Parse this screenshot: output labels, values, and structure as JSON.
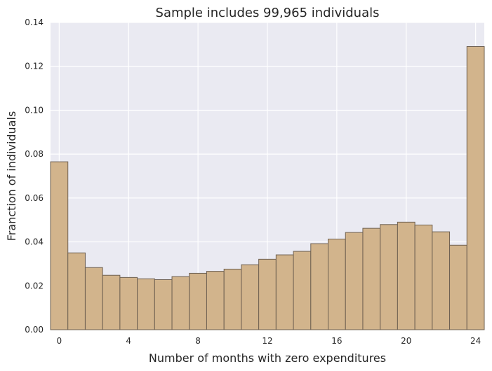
{
  "chart_data": {
    "type": "bar",
    "title": "Sample includes 99,965 individuals",
    "xlabel": "Number of months with zero expenditures",
    "ylabel": "Franction of individuals",
    "categories": [
      0,
      1,
      2,
      3,
      4,
      5,
      6,
      7,
      8,
      9,
      10,
      11,
      12,
      13,
      14,
      15,
      16,
      17,
      18,
      19,
      20,
      21,
      22,
      23,
      24
    ],
    "values": [
      0.0765,
      0.035,
      0.0283,
      0.0248,
      0.0238,
      0.0232,
      0.0228,
      0.0242,
      0.0257,
      0.0266,
      0.0276,
      0.0296,
      0.0321,
      0.0341,
      0.0357,
      0.0392,
      0.0413,
      0.0443,
      0.0462,
      0.0479,
      0.049,
      0.0477,
      0.0446,
      0.0385,
      0.129
    ],
    "xlim": [
      -0.5,
      24.5
    ],
    "ylim": [
      0,
      0.14
    ],
    "xticks": [
      0,
      4,
      8,
      12,
      16,
      20,
      24
    ],
    "xtick_labels": [
      "0",
      "4",
      "8",
      "12",
      "16",
      "20",
      "24"
    ],
    "yticks": [
      0,
      0.02,
      0.04,
      0.06,
      0.08,
      0.1,
      0.12,
      0.14
    ],
    "ytick_labels": [
      "0.00",
      "0.02",
      "0.04",
      "0.06",
      "0.08",
      "0.10",
      "0.12",
      "0.14"
    ],
    "grid": true,
    "colors": {
      "bar_fill": "#d2b48c",
      "bar_edge": "#6e6051",
      "plot_background": "#eaeaf2",
      "grid": "#ffffff"
    }
  }
}
